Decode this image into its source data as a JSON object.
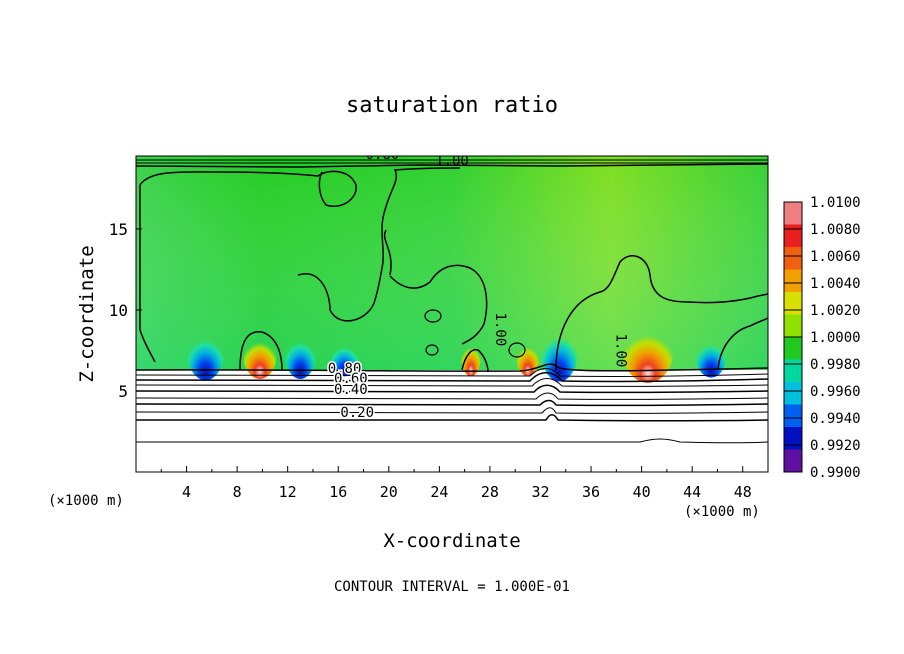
{
  "chart_data": {
    "type": "heatmap",
    "title": "saturation ratio",
    "xlabel": "X-coordinate",
    "ylabel": "Z-coordinate",
    "x_unit_left": "(×1000 m)",
    "x_unit_right": "(×1000 m)",
    "xlim": [
      0,
      50
    ],
    "ylim": [
      0,
      19.5
    ],
    "xticks": [
      4,
      8,
      12,
      16,
      20,
      24,
      28,
      32,
      36,
      40,
      44,
      48
    ],
    "yticks": [
      5,
      10,
      15
    ],
    "footer": "CONTOUR INTERVAL = 1.000E-01",
    "colorbar": {
      "levels": [
        "1.0100",
        "1.0080",
        "1.0060",
        "1.0040",
        "1.0020",
        "1.0000",
        "0.9980",
        "0.9960",
        "0.9940",
        "0.9920",
        "0.9900"
      ],
      "colors": [
        "#f08080",
        "#e82020",
        "#f06010",
        "#f0a000",
        "#d8e000",
        "#90e000",
        "#20c820",
        "#00d8a0",
        "#00c0e0",
        "#0060f0",
        "#0010c0",
        "#6010a0"
      ]
    },
    "contour_labels": [
      {
        "text": "0.80",
        "x": 19.5,
        "z": 19.3
      },
      {
        "text": "1.00",
        "x": 25.0,
        "z": 18.9
      },
      {
        "text": "1.00",
        "x": 28.5,
        "z": 8.8
      },
      {
        "text": "1.00",
        "x": 38.0,
        "z": 7.5
      },
      {
        "text": "0.80",
        "x": 16.5,
        "z": 6.1
      },
      {
        "text": "0.60",
        "x": 17.0,
        "z": 5.5
      },
      {
        "text": "0.40",
        "x": 17.0,
        "z": 4.8
      },
      {
        "text": "0.20",
        "x": 17.5,
        "z": 3.4
      }
    ]
  }
}
